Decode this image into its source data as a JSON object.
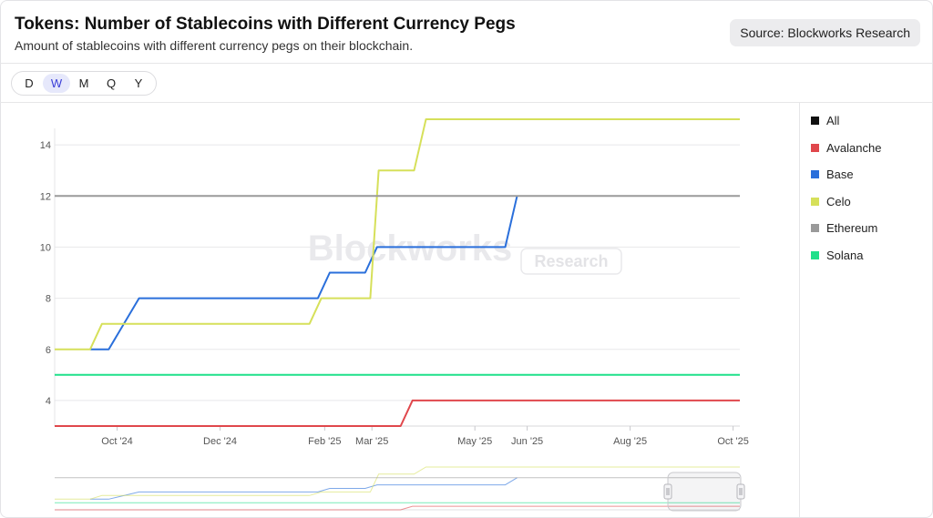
{
  "header": {
    "title": "Tokens: Number of Stablecoins with Different Currency Pegs",
    "subtitle": "Amount of stablecoins with different currency pegs on their blockchain.",
    "source": "Source: Blockworks Research"
  },
  "periods": [
    "D",
    "W",
    "M",
    "Q",
    "Y"
  ],
  "active_period": "W",
  "watermark": {
    "main": "Blockworks",
    "badge": "Research"
  },
  "colors": {
    "grid": "#e8e8ea",
    "tick": "#555555",
    "All": "#111111",
    "Avalanche": "#e0474c",
    "Base": "#2a6fdb",
    "Celo": "#d6e05a",
    "Ethereum": "#9a9a9a",
    "Solana": "#1fe08a"
  },
  "legend": [
    {
      "name": "All",
      "color": "#111111"
    },
    {
      "name": "Avalanche",
      "color": "#e0474c"
    },
    {
      "name": "Base",
      "color": "#2a6fdb"
    },
    {
      "name": "Celo",
      "color": "#d6e05a"
    },
    {
      "name": "Ethereum",
      "color": "#9a9a9a"
    },
    {
      "name": "Solana",
      "color": "#1fe08a"
    }
  ],
  "chart_data": {
    "type": "line",
    "title": "Tokens: Number of Stablecoins with Different Currency Pegs",
    "subtitle": "Amount of stablecoins with different currency pegs on their blockchain.",
    "xlabel": "",
    "ylabel": "",
    "x_range": [
      "2024-08-25",
      "2025-10-05"
    ],
    "ylim": [
      3,
      15
    ],
    "yticks": [
      4,
      6,
      8,
      10,
      12,
      14
    ],
    "xticks": [
      {
        "label": "Oct '24",
        "date": "2024-10-01"
      },
      {
        "label": "Dec '24",
        "date": "2024-12-01"
      },
      {
        "label": "Feb '25",
        "date": "2025-02-01"
      },
      {
        "label": "Mar '25",
        "date": "2025-03-01"
      },
      {
        "label": "May '25",
        "date": "2025-05-01"
      },
      {
        "label": "Jun '25",
        "date": "2025-06-01"
      },
      {
        "label": "Aug '25",
        "date": "2025-08-01"
      },
      {
        "label": "Oct '25",
        "date": "2025-10-01"
      }
    ],
    "grid": true,
    "legend_position": "right",
    "series": [
      {
        "name": "All",
        "points": []
      },
      {
        "name": "Avalanche",
        "points": [
          [
            "2024-08-25",
            3
          ],
          [
            "2025-03-18",
            3
          ],
          [
            "2025-03-25",
            4
          ],
          [
            "2025-10-05",
            4
          ]
        ]
      },
      {
        "name": "Base",
        "points": [
          [
            "2024-09-15",
            6
          ],
          [
            "2024-09-26",
            6
          ],
          [
            "2024-10-14",
            8
          ],
          [
            "2025-01-28",
            8
          ],
          [
            "2025-02-04",
            9
          ],
          [
            "2025-02-25",
            9
          ],
          [
            "2025-03-04",
            10
          ],
          [
            "2025-05-19",
            10
          ],
          [
            "2025-05-26",
            12
          ]
        ]
      },
      {
        "name": "Celo",
        "points": [
          [
            "2024-08-25",
            6
          ],
          [
            "2024-09-15",
            6
          ],
          [
            "2024-09-22",
            7
          ],
          [
            "2025-01-23",
            7
          ],
          [
            "2025-01-30",
            8
          ],
          [
            "2025-02-28",
            8
          ],
          [
            "2025-03-05",
            13
          ],
          [
            "2025-03-26",
            13
          ],
          [
            "2025-04-02",
            15
          ],
          [
            "2025-10-05",
            15
          ]
        ]
      },
      {
        "name": "Ethereum",
        "points": [
          [
            "2024-08-25",
            12
          ],
          [
            "2025-10-05",
            12
          ]
        ]
      },
      {
        "name": "Solana",
        "points": [
          [
            "2024-08-25",
            5
          ],
          [
            "2025-10-05",
            5
          ]
        ]
      }
    ]
  }
}
